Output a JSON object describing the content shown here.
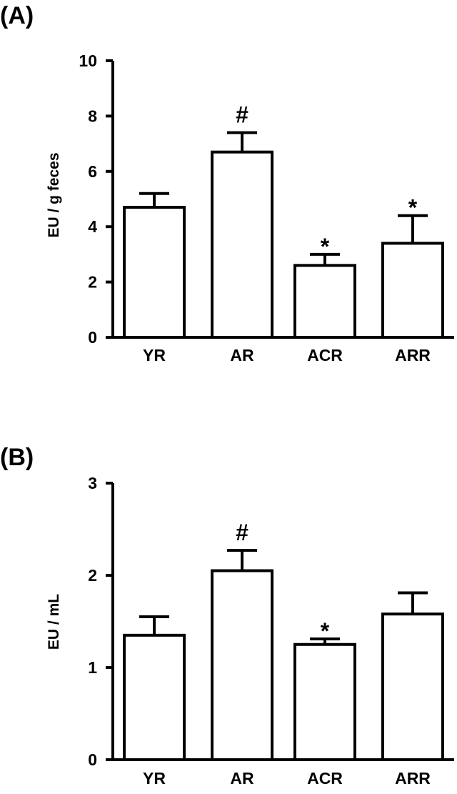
{
  "chart_data": [
    {
      "type": "bar",
      "panel_label": "(A)",
      "ylabel": "EU / g feces",
      "categories": [
        "YR",
        "AR",
        "ACR",
        "ARR"
      ],
      "values": [
        4.7,
        6.7,
        2.6,
        3.4
      ],
      "errors": [
        0.5,
        0.7,
        0.4,
        1.0
      ],
      "annotations": [
        "",
        "#",
        "*",
        "*"
      ],
      "ylim": [
        0,
        10
      ],
      "yticks": [
        "0",
        "2",
        "4",
        "6",
        "8",
        "10"
      ],
      "grid": false
    },
    {
      "type": "bar",
      "panel_label": "(B)",
      "ylabel": "EU / mL",
      "categories": [
        "YR",
        "AR",
        "ACR",
        "ARR"
      ],
      "values": [
        1.35,
        2.05,
        1.25,
        1.58
      ],
      "errors": [
        0.2,
        0.22,
        0.06,
        0.23
      ],
      "annotations": [
        "",
        "#",
        "*",
        ""
      ],
      "ylim": [
        0,
        3
      ],
      "yticks": [
        "0",
        "1",
        "2",
        "3"
      ],
      "grid": false
    }
  ]
}
